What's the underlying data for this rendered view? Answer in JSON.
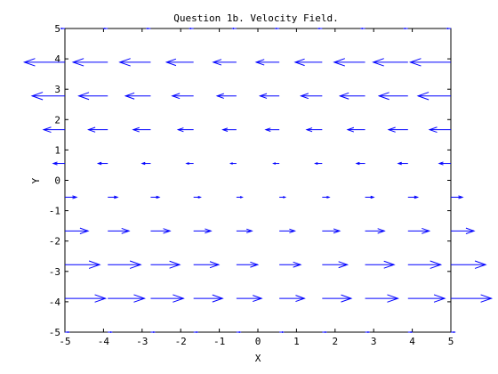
{
  "chart_data": {
    "type": "quiver",
    "title": "Question 1b. Velocity Field.",
    "xlabel": "X",
    "ylabel": "Y",
    "xlim": [
      -5,
      5
    ],
    "ylim": [
      -5,
      5
    ],
    "xticks": [
      "-5",
      "-4",
      "-3",
      "-2",
      "-1",
      "0",
      "1",
      "2",
      "3",
      "4",
      "5"
    ],
    "yticks": [
      "5",
      "4",
      "3",
      "2",
      "1",
      "0",
      "-1",
      "-2",
      "-3",
      "-4",
      "-5"
    ],
    "grid": false,
    "color": "#0000ff",
    "x": [
      -5.0,
      -3.8889,
      -2.7778,
      -1.6667,
      -0.5556,
      0.5556,
      1.6667,
      2.7778,
      3.8889,
      5.0
    ],
    "y": [
      5.0,
      3.8889,
      2.7778,
      1.6667,
      0.5556,
      -0.5556,
      -1.6667,
      -2.7778,
      -3.8889,
      -5.0
    ],
    "u": [
      [
        -0.1,
        -0.1,
        -0.1,
        -0.1,
        -0.1,
        -0.1,
        -0.1,
        -0.1,
        -0.1,
        -0.1
      ],
      [
        -1.05,
        -0.9,
        -0.8,
        -0.7,
        -0.6,
        -0.6,
        -0.7,
        -0.8,
        -0.9,
        -1.05
      ],
      [
        -0.85,
        -0.75,
        -0.65,
        -0.55,
        -0.5,
        -0.5,
        -0.55,
        -0.65,
        -0.75,
        -0.85
      ],
      [
        -0.55,
        -0.5,
        -0.45,
        -0.4,
        -0.35,
        -0.35,
        -0.4,
        -0.45,
        -0.5,
        -0.55
      ],
      [
        -0.3,
        -0.25,
        -0.22,
        -0.18,
        -0.15,
        -0.15,
        -0.18,
        -0.22,
        -0.25,
        -0.3
      ],
      [
        0.3,
        0.25,
        0.22,
        0.18,
        0.15,
        0.15,
        0.18,
        0.22,
        0.25,
        0.3
      ],
      [
        0.6,
        0.55,
        0.5,
        0.45,
        0.4,
        0.4,
        0.45,
        0.5,
        0.55,
        0.6
      ],
      [
        0.9,
        0.85,
        0.75,
        0.65,
        0.55,
        0.55,
        0.65,
        0.75,
        0.85,
        0.9
      ],
      [
        1.05,
        0.95,
        0.85,
        0.75,
        0.65,
        0.65,
        0.75,
        0.85,
        0.95,
        1.05
      ],
      [
        0.1,
        0.1,
        0.1,
        0.1,
        0.1,
        0.1,
        0.1,
        0.1,
        0.1,
        0.1
      ]
    ],
    "v": [
      [
        0,
        0,
        0,
        0,
        0,
        0,
        0,
        0,
        0,
        0
      ],
      [
        0,
        0,
        0,
        0,
        0,
        0,
        0,
        0,
        0,
        0
      ],
      [
        0,
        0,
        0,
        0,
        0,
        0,
        0,
        0,
        0,
        0
      ],
      [
        0,
        0,
        0,
        0,
        0,
        0,
        0,
        0,
        0,
        0
      ],
      [
        0,
        0,
        0,
        0,
        0,
        0,
        0,
        0,
        0,
        0
      ],
      [
        0,
        0,
        0,
        0,
        0,
        0,
        0,
        0,
        0,
        0
      ],
      [
        0,
        0,
        0,
        0,
        0,
        0,
        0,
        0,
        0,
        0
      ],
      [
        0,
        0,
        0,
        0,
        0,
        0,
        0,
        0,
        0,
        0
      ],
      [
        0,
        0,
        0,
        0,
        0,
        0,
        0,
        0,
        0,
        0
      ],
      [
        0,
        0,
        0,
        0,
        0,
        0,
        0,
        0,
        0,
        0
      ]
    ]
  }
}
